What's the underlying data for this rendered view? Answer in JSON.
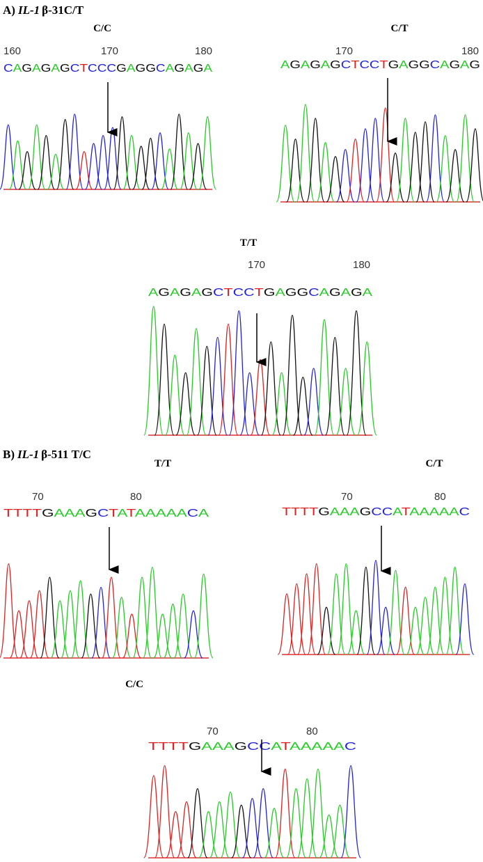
{
  "panels": [
    {
      "label": "A)",
      "gene": "IL-1",
      "suffix": "β-31C/T",
      "traces": [
        {
          "genotype": "C/C",
          "positions": [
            160,
            170,
            180
          ],
          "sequence": "CAGAGAGCTCCCGAGGCAGAGA"
        },
        {
          "genotype": "C/T",
          "positions": [
            170,
            180
          ],
          "sequence": "AGAGAGCTCCTGAGGCAGAG"
        },
        {
          "genotype": "T/T",
          "positions": [
            170,
            180
          ],
          "sequence": "AGAGAGCTCCTGAGGCAGAGA"
        }
      ]
    },
    {
      "label": "B)",
      "gene": "IL-1",
      "suffix": "β-511 T/C",
      "traces": [
        {
          "genotype": "T/T",
          "positions": [
            70,
            80
          ],
          "sequence": "TTTTGAAAGCTATAAAAACA"
        },
        {
          "genotype": "C/T",
          "positions": [
            70,
            80
          ],
          "sequence": "TTTTGAAAGCCATAAAAAC"
        },
        {
          "genotype": "C/C",
          "positions": [
            70,
            80
          ],
          "sequence": "TTTTGAAAGCCATAAAAAC"
        }
      ]
    }
  ]
}
